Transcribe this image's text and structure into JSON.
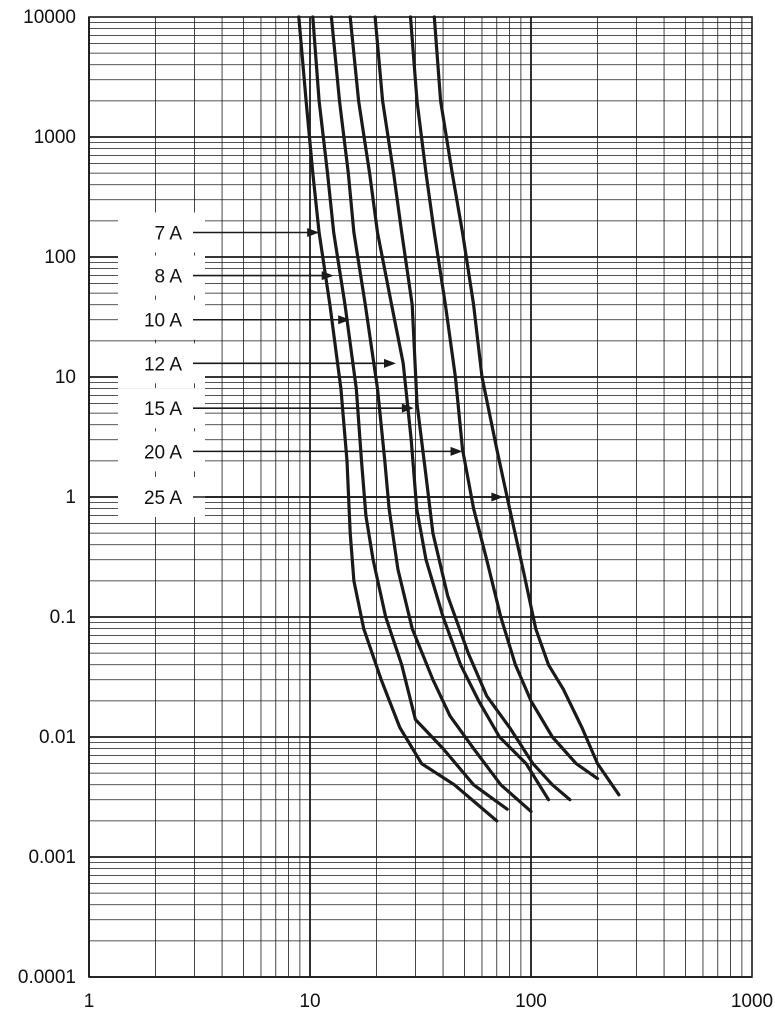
{
  "chart_data": {
    "type": "line",
    "title": "",
    "xlabel": "",
    "ylabel": "",
    "x_scale": "log",
    "y_scale": "log",
    "xlim": [
      1,
      1000
    ],
    "ylim": [
      0.0001,
      10000
    ],
    "grid": true,
    "x_ticks": [
      "1",
      "10",
      "100",
      "1000"
    ],
    "y_ticks": [
      "10000",
      "1000",
      "100",
      "10",
      "1",
      "0.1",
      "0.01",
      "0.001",
      "0.0001"
    ],
    "series": [
      {
        "name": "7 A",
        "points": [
          [
            8.9,
            10000
          ],
          [
            9.6,
            2000
          ],
          [
            10.3,
            500
          ],
          [
            11,
            160
          ],
          [
            12.3,
            40
          ],
          [
            13.8,
            8
          ],
          [
            14.7,
            2
          ],
          [
            15.2,
            0.5
          ],
          [
            15.8,
            0.2
          ],
          [
            17.5,
            0.08
          ],
          [
            21,
            0.03
          ],
          [
            25.5,
            0.012
          ],
          [
            32,
            0.006
          ],
          [
            45,
            0.004
          ],
          [
            70,
            0.002
          ]
        ]
      },
      {
        "name": "8 A",
        "points": [
          [
            10.3,
            10000
          ],
          [
            11,
            2000
          ],
          [
            12,
            500
          ],
          [
            12.8,
            160
          ],
          [
            14.4,
            40
          ],
          [
            16.2,
            8
          ],
          [
            17.1,
            2
          ],
          [
            17.9,
            0.7
          ],
          [
            19.3,
            0.3
          ],
          [
            22,
            0.1
          ],
          [
            26,
            0.04
          ],
          [
            30,
            0.014
          ],
          [
            40,
            0.008
          ],
          [
            55,
            0.004
          ],
          [
            78,
            0.0025
          ]
        ]
      },
      {
        "name": "10 A",
        "points": [
          [
            12.5,
            10000
          ],
          [
            13.6,
            2000
          ],
          [
            14.9,
            500
          ],
          [
            15.8,
            160
          ],
          [
            17.8,
            40
          ],
          [
            20.2,
            8
          ],
          [
            21.8,
            2
          ],
          [
            22.8,
            0.8
          ],
          [
            25,
            0.25
          ],
          [
            29,
            0.08
          ],
          [
            36,
            0.03
          ],
          [
            43,
            0.015
          ],
          [
            55,
            0.008
          ],
          [
            73,
            0.004
          ],
          [
            100,
            0.0024
          ]
        ]
      },
      {
        "name": "12 A",
        "points": [
          [
            15.2,
            10000
          ],
          [
            16.6,
            2000
          ],
          [
            18.6,
            500
          ],
          [
            20.2,
            160
          ],
          [
            23.4,
            40
          ],
          [
            26.4,
            13
          ],
          [
            28.7,
            3
          ],
          [
            30.4,
            0.8
          ],
          [
            33.5,
            0.3
          ],
          [
            40,
            0.1
          ],
          [
            48,
            0.04
          ],
          [
            58,
            0.02
          ],
          [
            72,
            0.01
          ],
          [
            95,
            0.006
          ],
          [
            120,
            0.003
          ]
        ]
      },
      {
        "name": "15 A",
        "points": [
          [
            19.7,
            10000
          ],
          [
            21.3,
            2000
          ],
          [
            23.9,
            500
          ],
          [
            26,
            160
          ],
          [
            29,
            40
          ],
          [
            30.5,
            6
          ],
          [
            33.5,
            1.5
          ],
          [
            36,
            0.5
          ],
          [
            42,
            0.15
          ],
          [
            52,
            0.05
          ],
          [
            63,
            0.022
          ],
          [
            80,
            0.012
          ],
          [
            102,
            0.006
          ],
          [
            125,
            0.004
          ],
          [
            150,
            0.003
          ]
        ]
      },
      {
        "name": "20 A",
        "points": [
          [
            28.5,
            10000
          ],
          [
            30.5,
            2000
          ],
          [
            33.5,
            500
          ],
          [
            36.5,
            160
          ],
          [
            41,
            40
          ],
          [
            45.5,
            10
          ],
          [
            49,
            2.5
          ],
          [
            55,
            0.8
          ],
          [
            63,
            0.3
          ],
          [
            73,
            0.1
          ],
          [
            85,
            0.04
          ],
          [
            100,
            0.02
          ],
          [
            125,
            0.01
          ],
          [
            160,
            0.006
          ],
          [
            200,
            0.0045
          ]
        ]
      },
      {
        "name": "25 A",
        "points": [
          [
            36.5,
            10000
          ],
          [
            39,
            2000
          ],
          [
            44,
            500
          ],
          [
            49,
            160
          ],
          [
            55,
            40
          ],
          [
            60,
            10
          ],
          [
            70,
            2.5
          ],
          [
            80,
            0.8
          ],
          [
            92,
            0.25
          ],
          [
            105,
            0.08
          ],
          [
            120,
            0.04
          ],
          [
            140,
            0.025
          ],
          [
            170,
            0.012
          ],
          [
            200,
            0.006
          ],
          [
            250,
            0.0033
          ]
        ]
      }
    ],
    "annotations": [
      {
        "text": "7 A",
        "arrow_to": [
          11,
          160
        ]
      },
      {
        "text": "8 A",
        "arrow_to": [
          12.8,
          70
        ]
      },
      {
        "text": "10 A",
        "arrow_to": [
          15.2,
          30
        ]
      },
      {
        "text": "12 A",
        "arrow_to": [
          24.5,
          13
        ]
      },
      {
        "text": "15 A",
        "arrow_to": [
          29.5,
          5.5
        ]
      },
      {
        "text": "20 A",
        "arrow_to": [
          49,
          2.4
        ]
      },
      {
        "text": "25 A",
        "arrow_to": [
          75,
          1.0
        ]
      }
    ],
    "colors": {
      "line": "#1a1a1a",
      "grid": "#1a1a1a",
      "background": "#ffffff"
    }
  }
}
